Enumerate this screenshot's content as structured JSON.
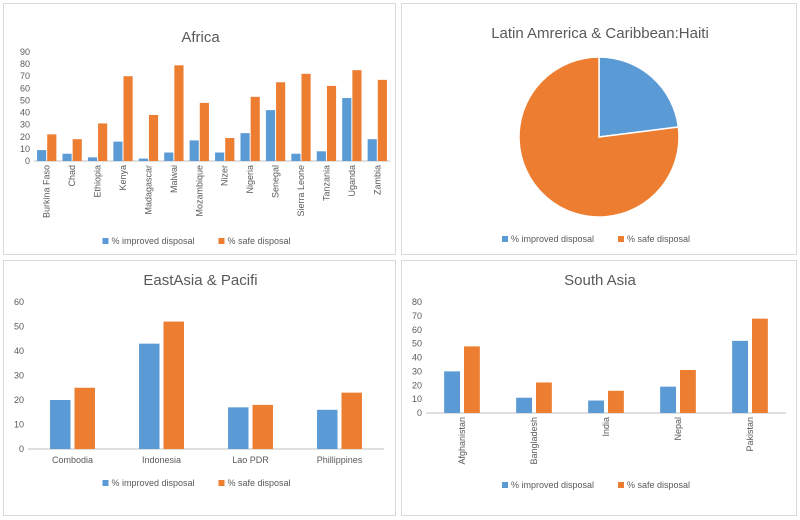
{
  "colors": {
    "improved": "#5b9bd5",
    "safe": "#ed7d31",
    "grid": "#d9d9d9",
    "axis": "#bfbfbf",
    "text": "#595959"
  },
  "chart_data": [
    {
      "type": "bar",
      "title": "Africa",
      "categories": [
        "Burkina Faso",
        "Chad",
        "Ethiopia",
        "Kenya",
        "Madagascar",
        "Malwai",
        "Mozambique",
        "Nizer",
        "Nigeria",
        "Senegal",
        "Sierra Leone",
        "Tanzania",
        "Uganda",
        "Zambia"
      ],
      "series": [
        {
          "name": "% improved disposal",
          "values": [
            9,
            6,
            3,
            16,
            2,
            7,
            17,
            7,
            23,
            42,
            6,
            8,
            52,
            18
          ]
        },
        {
          "name": "% safe disposal",
          "values": [
            22,
            18,
            31,
            70,
            38,
            79,
            48,
            19,
            53,
            65,
            72,
            62,
            75,
            67
          ]
        }
      ],
      "ylim": [
        0,
        90
      ],
      "yticks": [
        0,
        10,
        20,
        30,
        40,
        50,
        60,
        70,
        80,
        90
      ],
      "legend": "bottom",
      "grid": false
    },
    {
      "type": "pie",
      "title": "Latin Amrerica  & Caribbean:Haiti",
      "labels": [
        "% improved disposal",
        "% safe disposal"
      ],
      "values": [
        23,
        77
      ],
      "legend": "bottom"
    },
    {
      "type": "bar",
      "title": "EastAsia & Pacifi",
      "categories": [
        "Combodia",
        "Indonesia",
        "Lao PDR",
        "Phillippines"
      ],
      "series": [
        {
          "name": "% improved disposal",
          "values": [
            20,
            43,
            17,
            16
          ]
        },
        {
          "name": "% safe disposal",
          "values": [
            25,
            52,
            18,
            23
          ]
        }
      ],
      "ylim": [
        0,
        60
      ],
      "yticks": [
        0,
        10,
        20,
        30,
        40,
        50,
        60
      ],
      "legend": "bottom",
      "grid": false
    },
    {
      "type": "bar",
      "title": "South Asia",
      "categories": [
        "Afghanistan",
        "Bangladesh",
        "India",
        "Nepal",
        "Pakistan"
      ],
      "series": [
        {
          "name": "% improved disposal",
          "values": [
            30,
            11,
            9,
            19,
            52
          ]
        },
        {
          "name": "% safe disposal",
          "values": [
            48,
            22,
            16,
            31,
            68
          ]
        }
      ],
      "ylim": [
        0,
        80
      ],
      "yticks": [
        0,
        10,
        20,
        30,
        40,
        50,
        60,
        70,
        80
      ],
      "legend": "bottom",
      "grid": false
    }
  ]
}
